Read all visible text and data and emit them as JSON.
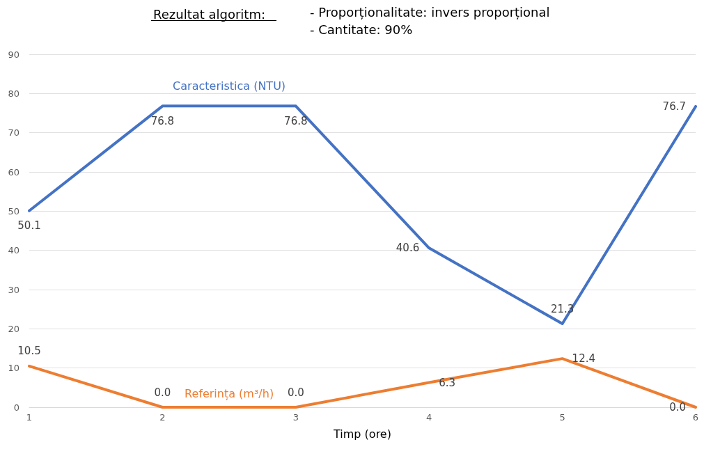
{
  "chart_data": {
    "type": "line",
    "title": "Rezultat algoritm:",
    "annotations": [
      "- Proporționalitate: invers proporțional",
      "- Cantitate: 90%"
    ],
    "xlabel": "Timp (ore)",
    "x": [
      1,
      2,
      3,
      4,
      5,
      6
    ],
    "series": [
      {
        "name": "Caracteristica (NTU)",
        "color": "#4472c4",
        "values": [
          50.1,
          76.8,
          76.8,
          40.6,
          21.3,
          76.7
        ],
        "value_labels": [
          "50.1",
          "76.8",
          "76.8",
          "40.6",
          "21.3",
          "76.7"
        ]
      },
      {
        "name": "Referința (m³/h)",
        "color": "#ed7d31",
        "values": [
          10.5,
          0,
          0,
          6.3,
          12.4,
          0
        ],
        "value_labels": [
          "10.5",
          "0.0",
          "0.0",
          "6.3",
          "12.4",
          "0.0"
        ]
      }
    ],
    "xlim": [
      1,
      6
    ],
    "xticks": [
      1,
      2,
      3,
      4,
      5,
      6
    ],
    "ylim": [
      0,
      90
    ],
    "yticks": [
      0,
      10,
      20,
      30,
      40,
      50,
      60,
      70,
      80,
      90
    ],
    "grid": "y",
    "legend": false,
    "marker": "none",
    "line_style": "solid"
  }
}
